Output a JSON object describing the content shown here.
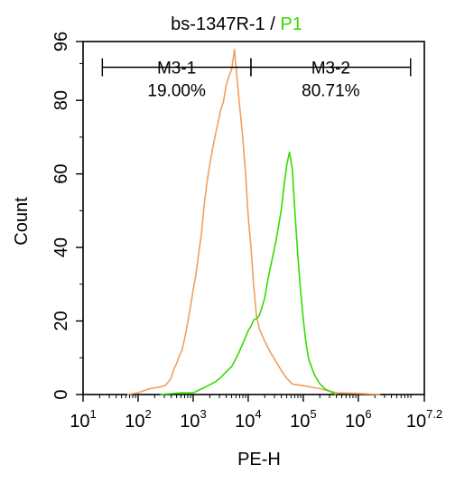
{
  "chart_data": {
    "type": "line",
    "title": {
      "sample": "bs-1347R-1",
      "separator": " / ",
      "gate": "P1",
      "gate_color": "#33dd00"
    },
    "xlabel": "PE-H",
    "ylabel": "Count",
    "x_scale": "log",
    "xlim": [
      1,
      7.2
    ],
    "ylim": [
      0,
      96
    ],
    "x_ticks": [
      {
        "base": "10",
        "exp": "1",
        "value": 1
      },
      {
        "base": "10",
        "exp": "2",
        "value": 2
      },
      {
        "base": "10",
        "exp": "3",
        "value": 3
      },
      {
        "base": "10",
        "exp": "4",
        "value": 4
      },
      {
        "base": "10",
        "exp": "5",
        "value": 5
      },
      {
        "base": "10",
        "exp": "6",
        "value": 6
      },
      {
        "base": "10",
        "exp": "7.2",
        "value": 7.2
      }
    ],
    "y_ticks": [
      "0",
      "20",
      "40",
      "60",
      "80",
      "96"
    ],
    "series": [
      {
        "color": "#f0a060",
        "x": [
          1.8,
          2.0,
          2.2,
          2.4,
          2.5,
          2.6,
          2.65,
          2.7,
          2.75,
          2.8,
          2.85,
          2.9,
          2.95,
          3.0,
          3.05,
          3.1,
          3.15,
          3.2,
          3.25,
          3.3,
          3.35,
          3.4,
          3.45,
          3.5,
          3.55,
          3.6,
          3.65,
          3.7,
          3.75,
          3.8,
          3.85,
          3.9,
          3.95,
          4.0,
          4.05,
          4.1,
          4.15,
          4.2,
          4.3,
          4.4,
          4.5,
          4.6,
          4.7,
          4.8,
          5.0,
          5.3,
          5.6,
          6.0,
          6.4
        ],
        "y": [
          0,
          0.5,
          1,
          2,
          3,
          5,
          7,
          8,
          10,
          12,
          16,
          20,
          24,
          28,
          32,
          38,
          44,
          52,
          58,
          62,
          66,
          70,
          74,
          78,
          80,
          84,
          86,
          88,
          94,
          86,
          78,
          70,
          60,
          48,
          40,
          30,
          22,
          18,
          14,
          11,
          9,
          7,
          5,
          3,
          2,
          1,
          0.5,
          0.3,
          0
        ]
      },
      {
        "color": "#33dd00",
        "x": [
          2.4,
          2.8,
          3.0,
          3.2,
          3.4,
          3.5,
          3.6,
          3.7,
          3.8,
          3.9,
          4.0,
          4.05,
          4.1,
          4.15,
          4.2,
          4.25,
          4.3,
          4.35,
          4.4,
          4.45,
          4.5,
          4.55,
          4.6,
          4.65,
          4.7,
          4.75,
          4.8,
          4.85,
          4.9,
          4.95,
          5.0,
          5.05,
          5.1,
          5.2,
          5.3,
          5.4,
          5.6
        ],
        "y": [
          0,
          0.5,
          1,
          2,
          3,
          4,
          6,
          8,
          11,
          14,
          17,
          18,
          20,
          21,
          22,
          24,
          26,
          30,
          34,
          38,
          42,
          46,
          50,
          56,
          62,
          66,
          62,
          50,
          38,
          28,
          20,
          14,
          10,
          6,
          3,
          1,
          0
        ]
      }
    ],
    "annotations": [
      {
        "label": "M3-1",
        "value": "19.00%",
        "x_start": 1.35,
        "x_end": 4.05
      },
      {
        "label": "M3-2",
        "value": "80.71%",
        "x_start": 4.05,
        "x_end": 6.95
      }
    ],
    "marker_y": 89,
    "grid": false,
    "legend": "none"
  }
}
